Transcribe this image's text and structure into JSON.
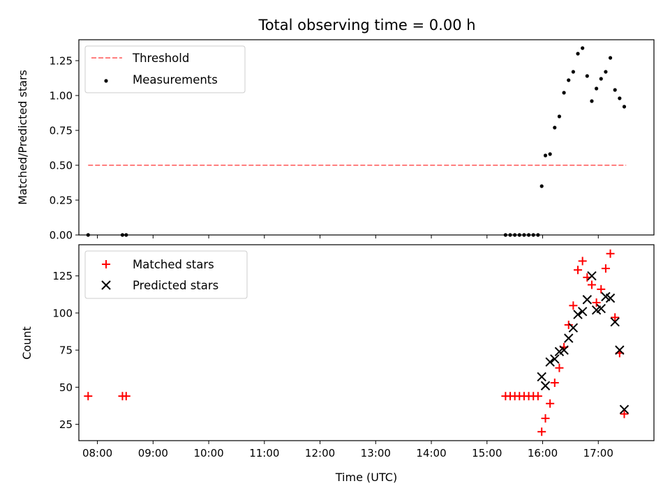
{
  "figure": {
    "title": "Total observing time = 0.00 h",
    "xlabel": "Time (UTC)"
  },
  "chart_data": [
    {
      "type": "scatter",
      "panel": "top",
      "ylabel": "Matched/Predicted stars",
      "xlim": [
        "07:40",
        "18:00"
      ],
      "ylim": [
        0,
        1.4
      ],
      "yticks": [
        "0.00",
        "0.25",
        "0.50",
        "0.75",
        "1.00",
        "1.25"
      ],
      "legend": {
        "location": "upper left",
        "entries": [
          "Threshold",
          "Measurements"
        ]
      },
      "series": [
        {
          "name": "Threshold",
          "style": "dashed-line",
          "color": "#ff7f7f",
          "points": [
            [
              "07:50",
              0.5
            ],
            [
              "17:30",
              0.5
            ]
          ]
        },
        {
          "name": "Measurements",
          "style": "dot",
          "color": "#000000",
          "points": [
            [
              "07:50",
              0.0
            ],
            [
              "08:27",
              0.0
            ],
            [
              "08:31",
              0.0
            ],
            [
              "15:20",
              0.0
            ],
            [
              "15:25",
              0.0
            ],
            [
              "15:30",
              0.0
            ],
            [
              "15:35",
              0.0
            ],
            [
              "15:40",
              0.0
            ],
            [
              "15:45",
              0.0
            ],
            [
              "15:50",
              0.0
            ],
            [
              "15:55",
              0.0
            ],
            [
              "15:59",
              0.35
            ],
            [
              "16:03",
              0.57
            ],
            [
              "16:08",
              0.58
            ],
            [
              "16:13",
              0.77
            ],
            [
              "16:18",
              0.85
            ],
            [
              "16:23",
              1.02
            ],
            [
              "16:28",
              1.11
            ],
            [
              "16:33",
              1.17
            ],
            [
              "16:38",
              1.3
            ],
            [
              "16:43",
              1.34
            ],
            [
              "16:48",
              1.14
            ],
            [
              "16:53",
              0.96
            ],
            [
              "16:58",
              1.05
            ],
            [
              "17:03",
              1.12
            ],
            [
              "17:08",
              1.17
            ],
            [
              "17:13",
              1.27
            ],
            [
              "17:18",
              1.04
            ],
            [
              "17:23",
              0.98
            ],
            [
              "17:28",
              0.92
            ]
          ]
        }
      ]
    },
    {
      "type": "scatter",
      "panel": "bottom",
      "ylabel": "Count",
      "xlabel": "Time (UTC)",
      "xlim": [
        "07:40",
        "18:00"
      ],
      "ylim": [
        14,
        146
      ],
      "yticks": [
        "25",
        "50",
        "75",
        "100",
        "125"
      ],
      "xticks": [
        "08:00",
        "09:00",
        "10:00",
        "11:00",
        "12:00",
        "13:00",
        "14:00",
        "15:00",
        "16:00",
        "17:00"
      ],
      "legend": {
        "location": "upper left",
        "entries": [
          "Matched stars",
          "Predicted stars"
        ]
      },
      "series": [
        {
          "name": "Matched stars",
          "marker": "plus",
          "color": "#ff0000",
          "points": [
            [
              "07:50",
              44
            ],
            [
              "08:27",
              44
            ],
            [
              "08:31",
              44
            ],
            [
              "15:20",
              44
            ],
            [
              "15:25",
              44
            ],
            [
              "15:30",
              44
            ],
            [
              "15:35",
              44
            ],
            [
              "15:40",
              44
            ],
            [
              "15:45",
              44
            ],
            [
              "15:50",
              44
            ],
            [
              "15:55",
              44
            ],
            [
              "15:59",
              20
            ],
            [
              "16:03",
              29
            ],
            [
              "16:08",
              39
            ],
            [
              "16:13",
              53
            ],
            [
              "16:18",
              63
            ],
            [
              "16:23",
              77
            ],
            [
              "16:28",
              92
            ],
            [
              "16:33",
              105
            ],
            [
              "16:38",
              129
            ],
            [
              "16:43",
              135
            ],
            [
              "16:48",
              124
            ],
            [
              "16:53",
              119
            ],
            [
              "16:58",
              107
            ],
            [
              "17:03",
              116
            ],
            [
              "17:08",
              130
            ],
            [
              "17:13",
              140
            ],
            [
              "17:18",
              97
            ],
            [
              "17:23",
              73
            ],
            [
              "17:28",
              32
            ]
          ]
        },
        {
          "name": "Predicted stars",
          "marker": "x",
          "color": "#000000",
          "points": [
            [
              "15:59",
              57
            ],
            [
              "16:03",
              51
            ],
            [
              "16:08",
              67
            ],
            [
              "16:13",
              69
            ],
            [
              "16:18",
              74
            ],
            [
              "16:23",
              75
            ],
            [
              "16:28",
              83
            ],
            [
              "16:33",
              90
            ],
            [
              "16:38",
              99
            ],
            [
              "16:43",
              101
            ],
            [
              "16:48",
              109
            ],
            [
              "16:53",
              125
            ],
            [
              "16:58",
              102
            ],
            [
              "17:03",
              103
            ],
            [
              "17:08",
              111
            ],
            [
              "17:13",
              110
            ],
            [
              "17:18",
              94
            ],
            [
              "17:23",
              75
            ],
            [
              "17:28",
              35
            ]
          ]
        }
      ]
    }
  ]
}
